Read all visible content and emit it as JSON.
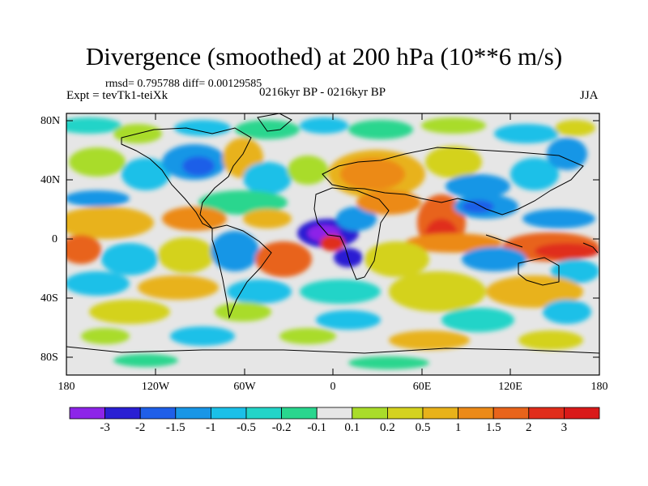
{
  "title": "Divergence (smoothed) at 200 hPa (10**6 m/s)",
  "stats": "rmsd= 0.795788 diff= 0.00129585",
  "experiment": "Expt = tevTk1-teiXk",
  "period": "0216kyr BP - 0216kyr BP",
  "season": "JJA",
  "lat_labels": [
    "80N",
    "40N",
    "0",
    "40S",
    "80S"
  ],
  "lon_labels": [
    "180",
    "120W",
    "60W",
    "0",
    "60E",
    "120E",
    "180"
  ],
  "colorbar": {
    "tick_labels": [
      "-3",
      "-2",
      "-1.5",
      "-1",
      "-0.5",
      "-0.2",
      "-0.1",
      "0.1",
      "0.2",
      "0.5",
      "1",
      "1.5",
      "2",
      "3"
    ],
    "colors": [
      "#8d24e8",
      "#2a1fd3",
      "#1f5fe8",
      "#1996e6",
      "#1bc0e8",
      "#23d4c8",
      "#29d68e",
      "#e6e6e6",
      "#a9dc2a",
      "#d4d21f",
      "#e8b21a",
      "#ec8a18",
      "#e8641b",
      "#e02d1b",
      "#d91a1a"
    ]
  }
}
